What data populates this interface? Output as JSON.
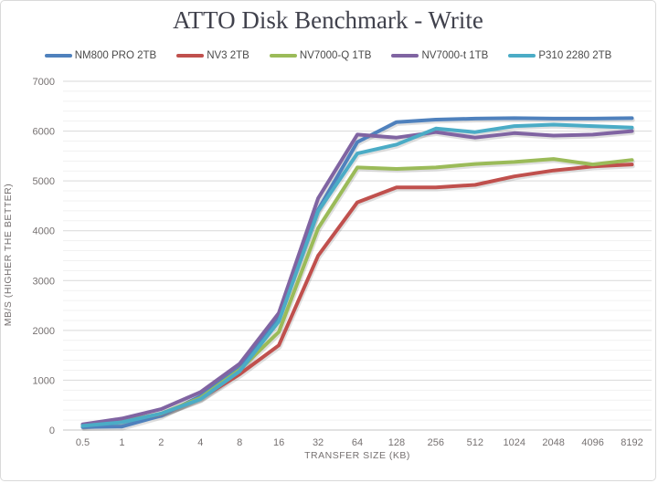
{
  "chart_data": {
    "type": "line",
    "title": "ATTO Disk Benchmark - Write",
    "xlabel": "TRANSFER SIZE (KB)",
    "ylabel": "MB/S (HIGHER THE BETTER)",
    "categories": [
      "0.5",
      "1",
      "2",
      "4",
      "8",
      "16",
      "32",
      "64",
      "128",
      "256",
      "512",
      "1024",
      "2048",
      "4096",
      "8192"
    ],
    "ylim": [
      0,
      7000
    ],
    "y_major_step": 1000,
    "y_minor_step": 200,
    "grid": true,
    "legend_position": "top",
    "series": [
      {
        "name": "NM800 PRO 2TB",
        "color": "#4F81BD",
        "values": [
          60,
          70,
          290,
          680,
          1240,
          2280,
          4420,
          5780,
          6180,
          6230,
          6250,
          6260,
          6250,
          6250,
          6260
        ]
      },
      {
        "name": "NV3 2TB",
        "color": "#C0504D",
        "values": [
          95,
          175,
          320,
          630,
          1120,
          1700,
          3500,
          4570,
          4870,
          4870,
          4920,
          5090,
          5210,
          5290,
          5330
        ]
      },
      {
        "name": "NV7000-Q 1TB",
        "color": "#9BBB59",
        "values": [
          90,
          170,
          330,
          645,
          1210,
          1970,
          4050,
          5270,
          5240,
          5270,
          5340,
          5380,
          5440,
          5330,
          5420
        ]
      },
      {
        "name": "NV7000-t 1TB",
        "color": "#8064A2",
        "values": [
          115,
          230,
          420,
          760,
          1330,
          2350,
          4650,
          5930,
          5870,
          5980,
          5870,
          5960,
          5910,
          5930,
          6000
        ]
      },
      {
        "name": "P310 2280 2TB",
        "color": "#4BACC6",
        "values": [
          85,
          155,
          330,
          620,
          1180,
          2180,
          4390,
          5550,
          5730,
          6050,
          5980,
          6100,
          6130,
          6100,
          6070
        ]
      }
    ]
  },
  "style": {
    "major_grid_color": "#d9d9d9",
    "minor_grid_color": "#f1f1f1",
    "axis_line_color": "#c6c6c6",
    "tick_label_color": "#767171"
  }
}
